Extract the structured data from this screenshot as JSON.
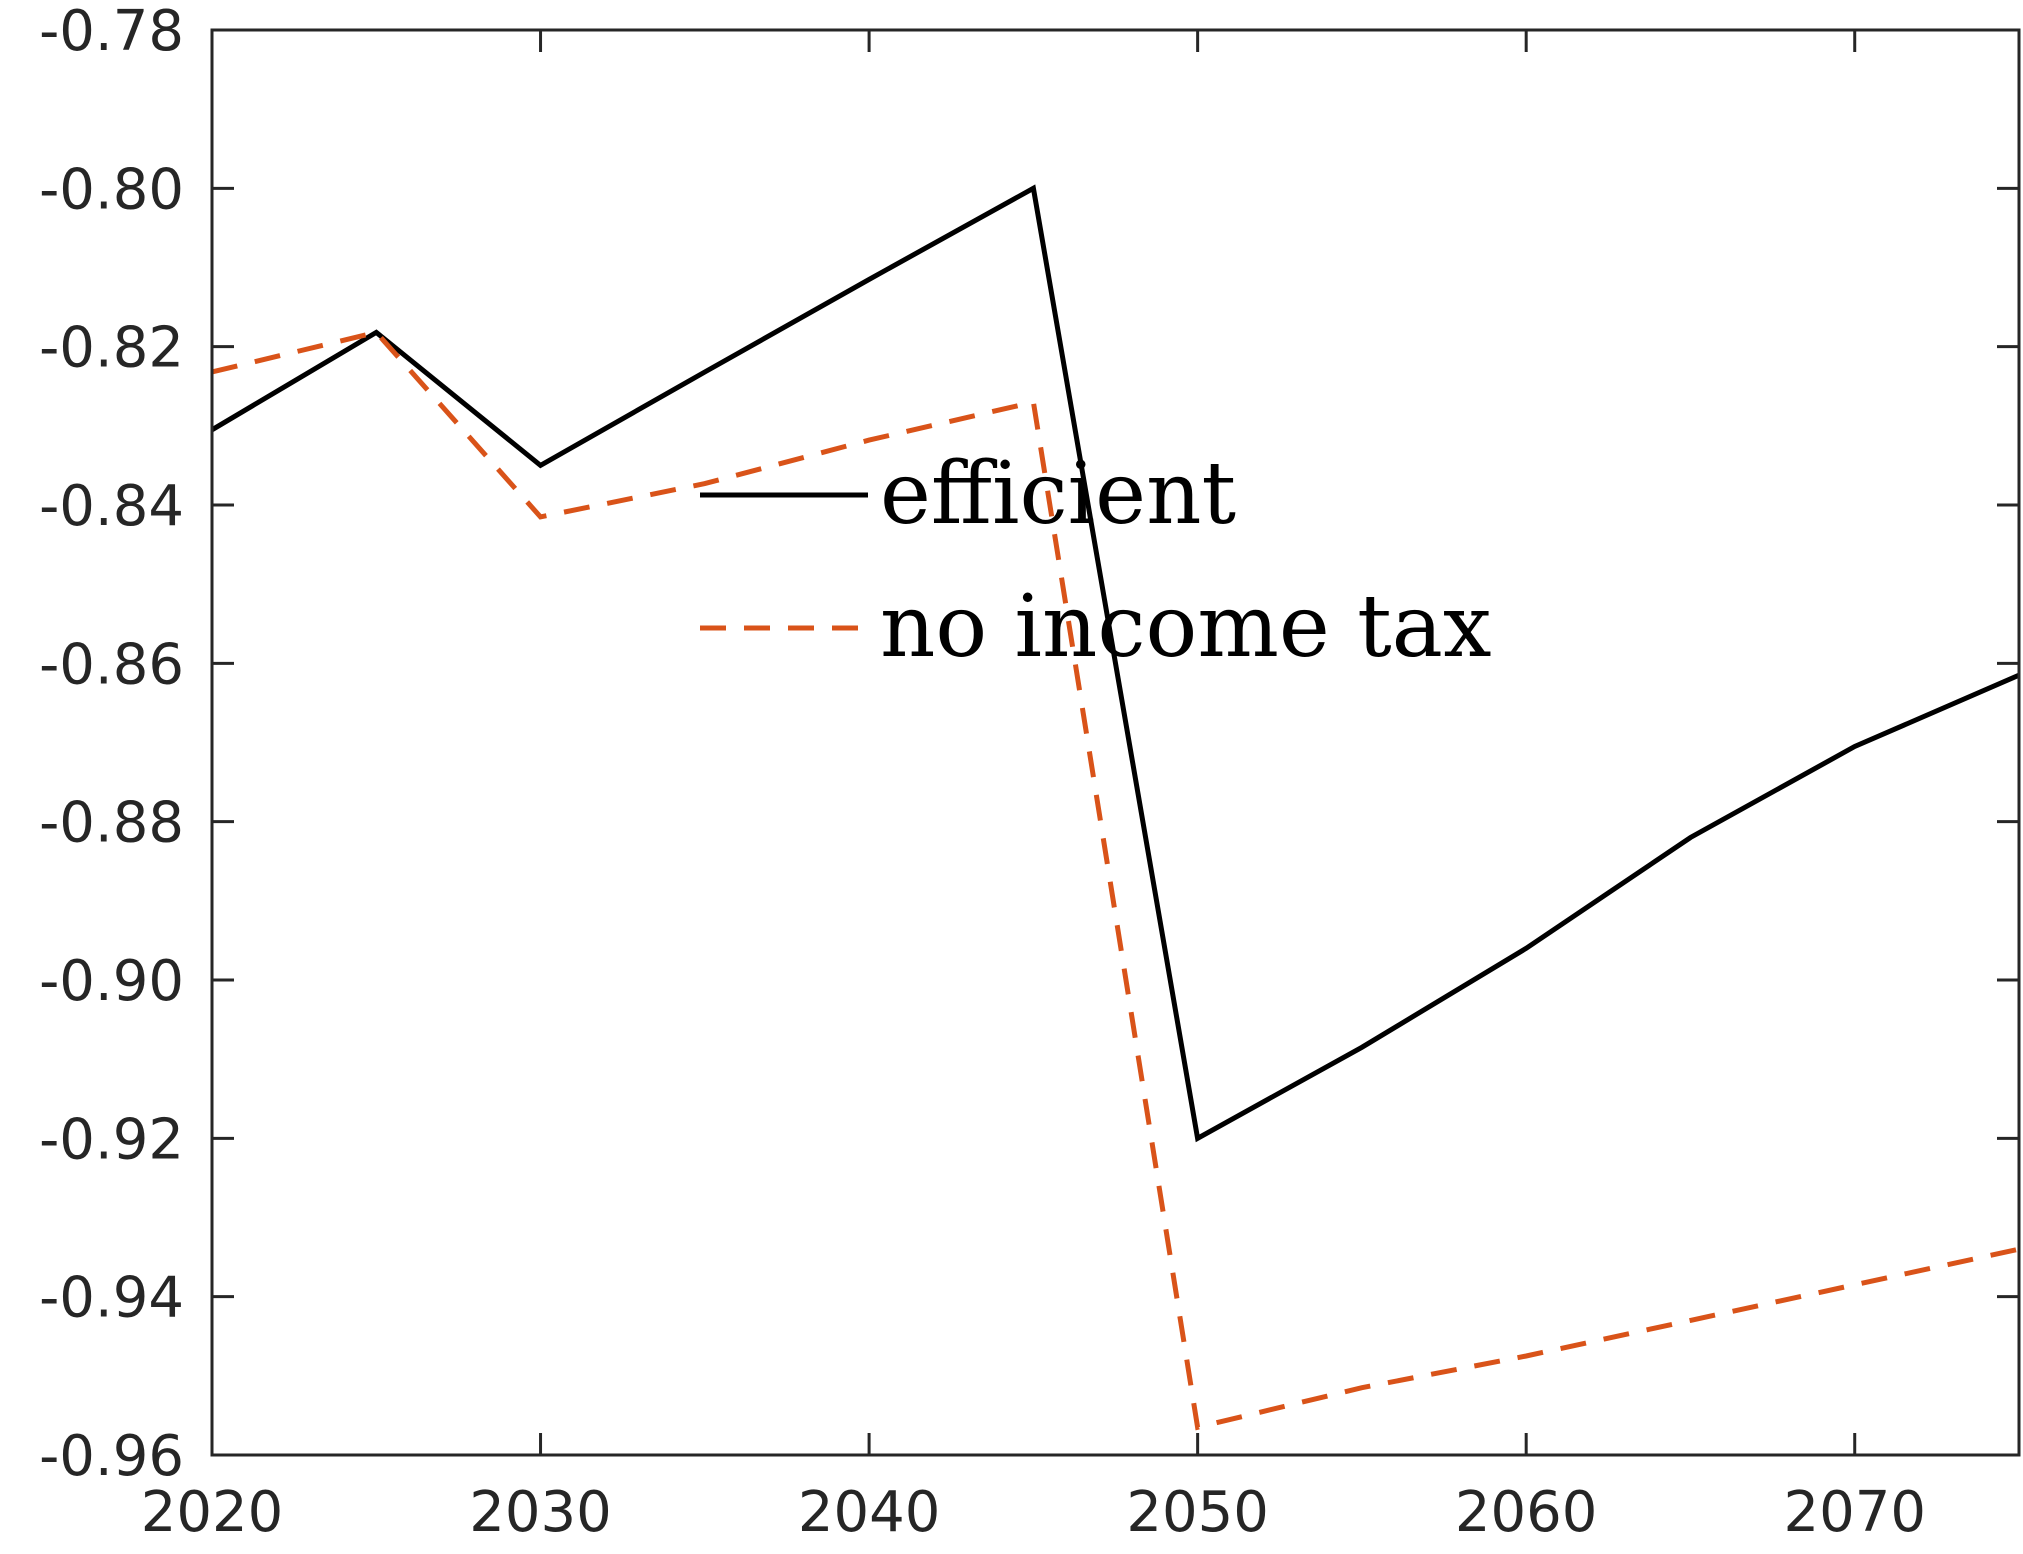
{
  "chart_data": {
    "type": "line",
    "title": "",
    "xlabel": "",
    "ylabel": "",
    "xlim": [
      2020,
      2075
    ],
    "ylim": [
      -0.96,
      -0.78
    ],
    "xticks": [
      2020,
      2030,
      2040,
      2050,
      2060,
      2070
    ],
    "xtick_labels": [
      "2020",
      "2030",
      "2040",
      "2050",
      "2060",
      "2070"
    ],
    "yticks": [
      -0.78,
      -0.8,
      -0.82,
      -0.84,
      -0.86,
      -0.88,
      -0.9,
      -0.92,
      -0.94,
      -0.96
    ],
    "ytick_labels": [
      "-0.78",
      "-0.80",
      "-0.82",
      "-0.84",
      "-0.86",
      "-0.88",
      "-0.90",
      "-0.92",
      "-0.94",
      "-0.96"
    ],
    "grid": false,
    "legend_position": "center",
    "series": [
      {
        "name": "efficient",
        "color": "#000000",
        "style": "solid",
        "x": [
          2020,
          2025,
          2030,
          2035,
          2040,
          2045,
          2050,
          2055,
          2060,
          2065,
          2070,
          2075
        ],
        "y": [
          -0.8305,
          -0.8182,
          -0.835,
          -0.8232,
          -0.8115,
          -0.8,
          -0.92,
          -0.9085,
          -0.896,
          -0.882,
          -0.8705,
          -0.8615
        ]
      },
      {
        "name": "no income tax",
        "color": "#D95319",
        "style": "dashed",
        "x": [
          2020,
          2025,
          2030,
          2035,
          2040,
          2045,
          2050,
          2055,
          2060,
          2065,
          2070,
          2075
        ],
        "y": [
          -0.8232,
          -0.8182,
          -0.8415,
          -0.8373,
          -0.8318,
          -0.827,
          -0.9565,
          -0.9515,
          -0.9475,
          -0.943,
          -0.9385,
          -0.934
        ]
      }
    ]
  }
}
